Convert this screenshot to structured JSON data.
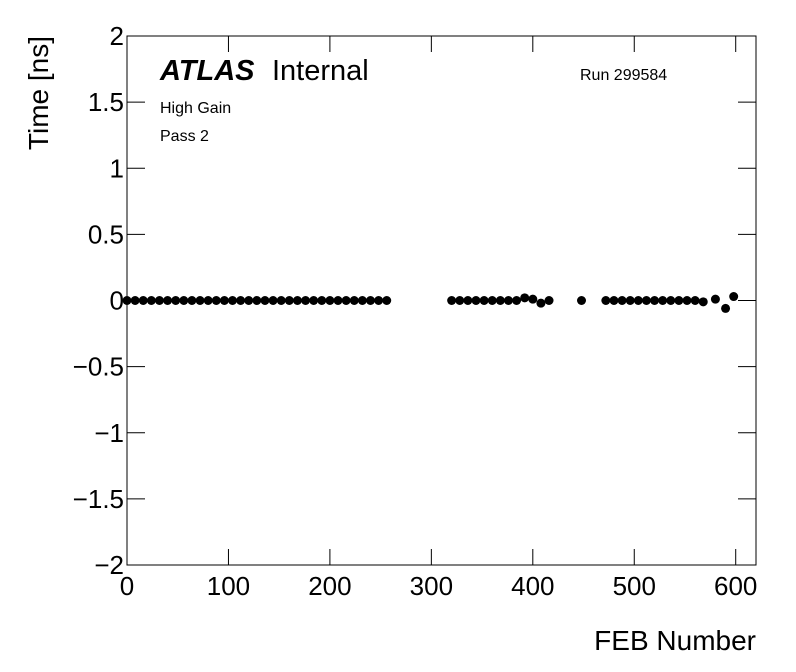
{
  "chart_data": {
    "type": "scatter",
    "brand": "ATLAS",
    "label": "Internal",
    "run": "Run 299584",
    "annotations": [
      "High Gain",
      "Pass 2"
    ],
    "x_label": "FEB Number",
    "y_label": "Time [ns]",
    "color": "#000000",
    "xlim": [
      0,
      620
    ],
    "xticks": [
      0,
      100,
      200,
      300,
      400,
      500,
      600
    ],
    "ylim": [
      -2,
      2
    ],
    "yticks": [
      {
        "value": -2,
        "label": "−2"
      },
      {
        "value": -1.5,
        "label": "−1.5"
      },
      {
        "value": -1,
        "label": "−1"
      },
      {
        "value": -0.5,
        "label": "−0.5"
      },
      0,
      0.5,
      1,
      1.5,
      2
    ],
    "x": [
      0,
      8,
      16,
      24,
      32,
      40,
      48,
      56,
      64,
      72,
      80,
      88,
      96,
      104,
      112,
      120,
      128,
      136,
      144,
      152,
      160,
      168,
      176,
      184,
      192,
      200,
      208,
      216,
      224,
      232,
      240,
      248,
      256,
      320,
      328,
      336,
      344,
      352,
      360,
      368,
      376,
      384,
      392,
      400,
      408,
      416,
      448,
      472,
      480,
      488,
      496,
      504,
      512,
      520,
      528,
      536,
      544,
      552,
      560,
      568,
      580,
      590,
      598
    ],
    "values": [
      0,
      0,
      0,
      0,
      0,
      0,
      0,
      0,
      0,
      0,
      0,
      0,
      0,
      0,
      0,
      0,
      0,
      0,
      0,
      0,
      0,
      0,
      0,
      0,
      0,
      0,
      0,
      0,
      0,
      0,
      0,
      0,
      0,
      0,
      0,
      0,
      0,
      0,
      0,
      0,
      0,
      0,
      0.02,
      0.01,
      -0.02,
      0,
      0,
      0,
      0,
      0,
      0,
      0,
      0,
      0,
      0,
      0,
      0,
      0,
      0,
      -0.01,
      0.01,
      -0.06,
      0.03
    ]
  }
}
